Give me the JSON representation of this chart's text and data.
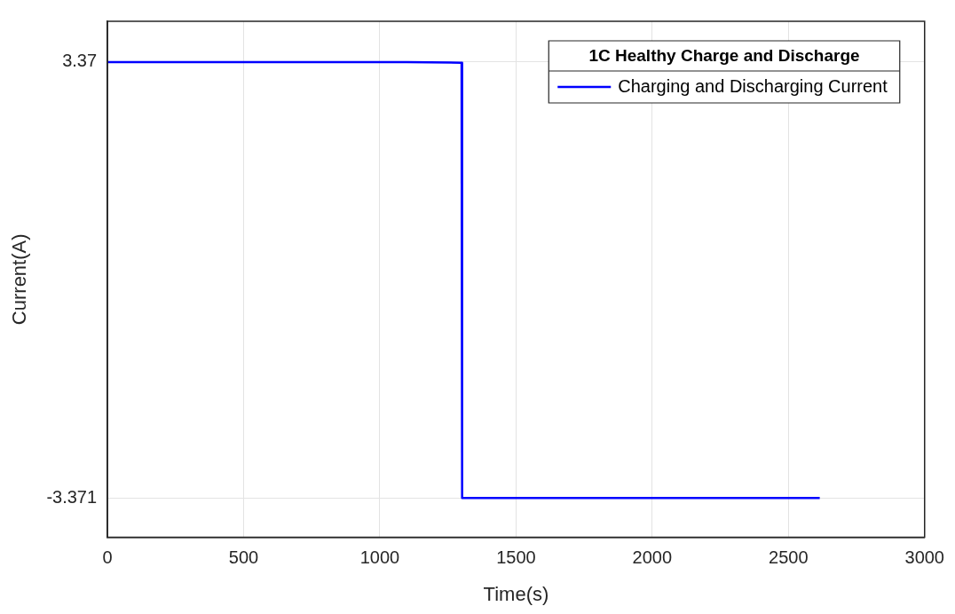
{
  "chart_data": {
    "type": "line",
    "xlabel": "Time(s)",
    "ylabel": "Current(A)",
    "legend_title": "1C Healthy Charge and Discharge",
    "x": [
      0,
      1100,
      1300,
      1302,
      2615
    ],
    "series": [
      {
        "name": "Charging and Discharging Current",
        "color": "#0000ff",
        "values": [
          3.37,
          3.37,
          3.36,
          -3.371,
          -3.371
        ]
      }
    ],
    "xlim": [
      0,
      3000
    ],
    "xticks": [
      0,
      500,
      1000,
      1500,
      2000,
      2500,
      3000
    ],
    "ylim": [
      -3.98,
      4.0
    ],
    "yticks": [
      -3.371,
      3.37
    ],
    "grid": true,
    "legend": "top right",
    "marker": "none",
    "line_style": "solid"
  }
}
